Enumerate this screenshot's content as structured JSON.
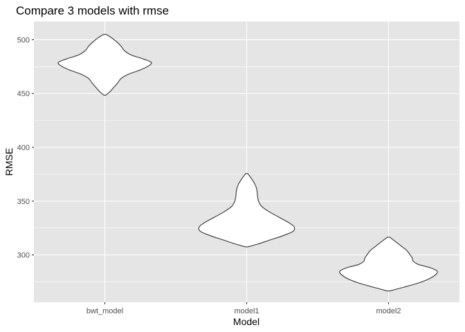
{
  "chart_data": {
    "type": "violin",
    "title": "Compare 3 models with rmse",
    "xlabel": "Model",
    "ylabel": "RMSE",
    "categories": [
      "bwt_model",
      "model1",
      "model2"
    ],
    "ylim": [
      256,
      517
    ],
    "yticks": [
      300,
      350,
      400,
      450,
      500
    ],
    "grid": true,
    "legend": "none",
    "colors": {
      "panel_bg": "#e5e5e5",
      "grid": "#ffffff",
      "violin_fill": "#ffffff",
      "violin_stroke": "#333333"
    },
    "series": [
      {
        "category": "bwt_model",
        "min": 448.5,
        "max": 505.0,
        "profile": [
          [
            448.5,
            0.02
          ],
          [
            452,
            0.1
          ],
          [
            456,
            0.17
          ],
          [
            460,
            0.24
          ],
          [
            464,
            0.3
          ],
          [
            468,
            0.44
          ],
          [
            472,
            0.66
          ],
          [
            476,
            0.82
          ],
          [
            479,
            0.86
          ],
          [
            482,
            0.72
          ],
          [
            486,
            0.48
          ],
          [
            490,
            0.36
          ],
          [
            494,
            0.3
          ],
          [
            498,
            0.22
          ],
          [
            502,
            0.12
          ],
          [
            505.0,
            0.02
          ]
        ]
      },
      {
        "category": "model1",
        "min": 307.5,
        "max": 375.5,
        "profile": [
          [
            307.5,
            0.02
          ],
          [
            310,
            0.2
          ],
          [
            314,
            0.44
          ],
          [
            318,
            0.68
          ],
          [
            322,
            0.86
          ],
          [
            326,
            0.88
          ],
          [
            330,
            0.78
          ],
          [
            335,
            0.6
          ],
          [
            340,
            0.42
          ],
          [
            345,
            0.28
          ],
          [
            350,
            0.22
          ],
          [
            355,
            0.2
          ],
          [
            360,
            0.19
          ],
          [
            365,
            0.16
          ],
          [
            370,
            0.1
          ],
          [
            375.5,
            0.02
          ]
        ]
      },
      {
        "category": "model2",
        "min": 266.5,
        "max": 316.5,
        "profile": [
          [
            266.5,
            0.02
          ],
          [
            270,
            0.28
          ],
          [
            274,
            0.56
          ],
          [
            278,
            0.76
          ],
          [
            282,
            0.88
          ],
          [
            285,
            0.9
          ],
          [
            288,
            0.78
          ],
          [
            291,
            0.56
          ],
          [
            294,
            0.46
          ],
          [
            297,
            0.44
          ],
          [
            300,
            0.4
          ],
          [
            304,
            0.34
          ],
          [
            308,
            0.24
          ],
          [
            312,
            0.14
          ],
          [
            316.5,
            0.02
          ]
        ]
      }
    ]
  }
}
